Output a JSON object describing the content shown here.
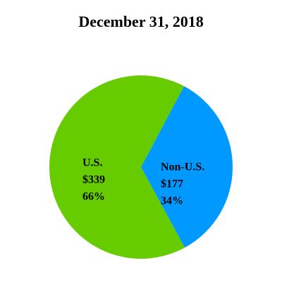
{
  "chart_data": {
    "type": "pie",
    "title": "December 31, 2018",
    "categories": [
      "U.S.",
      "Non-U.S."
    ],
    "values": [
      339,
      177
    ],
    "value_labels": [
      "$339",
      "$177"
    ],
    "percents": [
      66,
      34
    ],
    "percent_labels": [
      "66%",
      "34%"
    ],
    "colors": [
      "#66cc00",
      "#0099ff"
    ]
  }
}
